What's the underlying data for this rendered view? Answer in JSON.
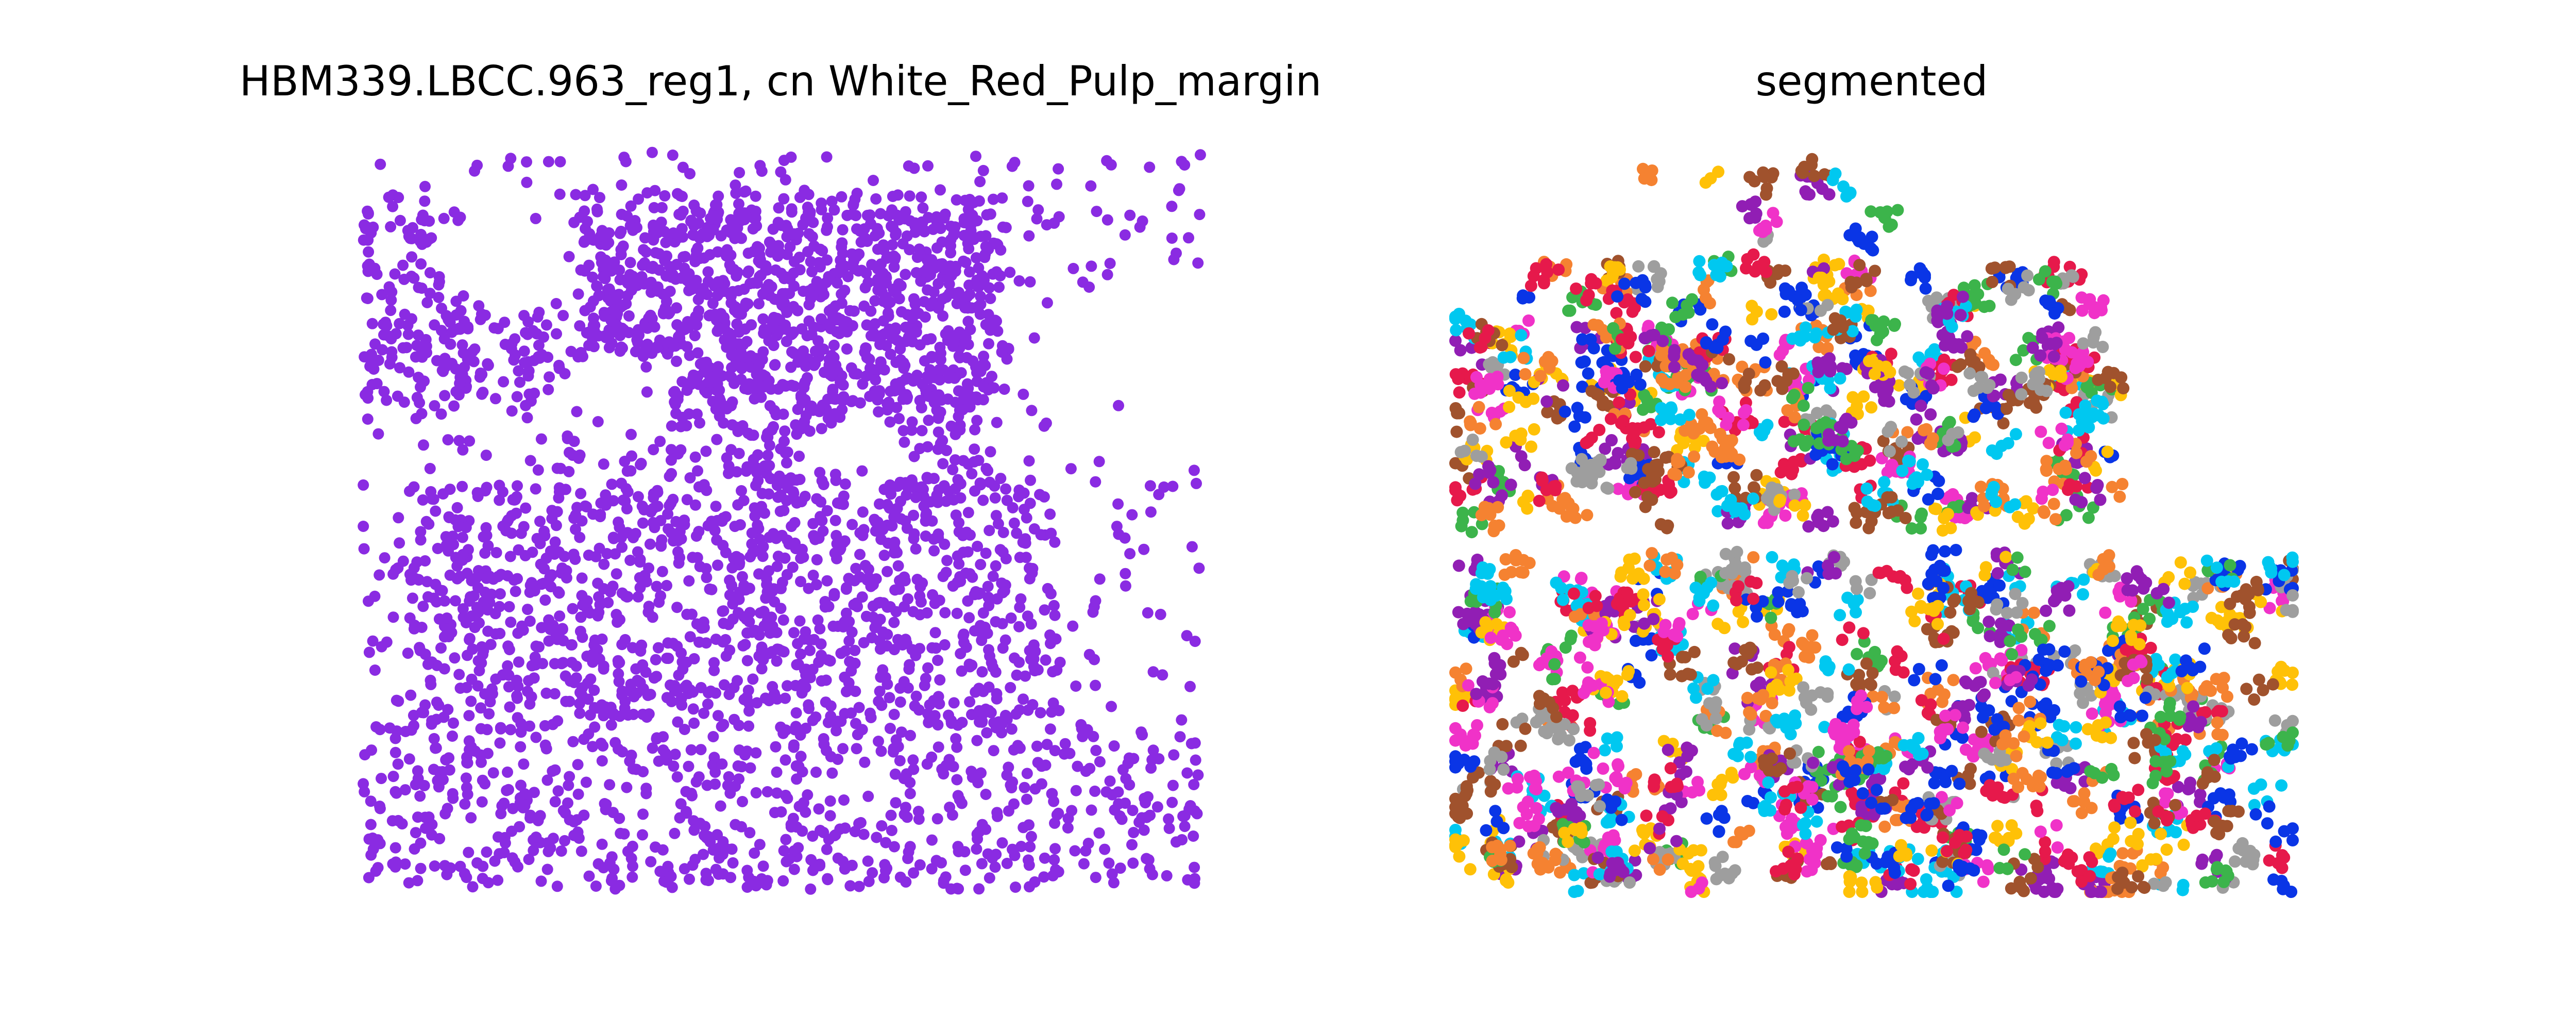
{
  "figure": {
    "left_title": "HBM339.LBCC.963_reg1, cn White_Red_Pulp_margin",
    "right_title": "segmented"
  },
  "chart_data": [
    {
      "type": "scatter",
      "title": "HBM339.LBCC.963_reg1, cn White_Red_Pulp_margin",
      "xlabel": "",
      "ylabel": "",
      "axes_visible": false,
      "grid": false,
      "point_color": "#8a2be2",
      "series": [
        {
          "color": "#8a2be2",
          "description": "dense cloud of cells; densest in two bands (upper band and lower band) with sparse scattered cells near top and right edges",
          "regions": [
            {
              "x": [
                0.0,
                1.0
              ],
              "y": [
                0.0,
                1.0
              ],
              "density": 0.25
            },
            {
              "x": [
                0.0,
                0.77
              ],
              "y": [
                0.08,
                0.35
              ],
              "density": 1.0
            },
            {
              "x": [
                0.25,
                0.75
              ],
              "y": [
                0.05,
                0.45
              ],
              "density": 1.0
            },
            {
              "x": [
                0.06,
                0.83
              ],
              "y": [
                0.45,
                0.78
              ],
              "density": 1.0
            },
            {
              "x": [
                0.0,
                1.0
              ],
              "y": [
                0.78,
                1.0
              ],
              "density": 0.6
            }
          ],
          "holes": [
            {
              "cx": 0.18,
              "cy": 0.14,
              "r": 0.08
            },
            {
              "cx": 0.3,
              "cy": 0.34,
              "r": 0.07
            },
            {
              "cx": 0.6,
              "cy": 0.4,
              "r": 0.05
            },
            {
              "cx": 0.92,
              "cy": 0.3,
              "r": 0.12
            }
          ]
        }
      ]
    },
    {
      "type": "scatter",
      "title": "segmented",
      "xlabel": "",
      "ylabel": "",
      "axes_visible": false,
      "grid": false,
      "palette": [
        "#e6194b",
        "#f58231",
        "#ffc107",
        "#3cb44b",
        "#00c8f0",
        "#0a35e6",
        "#911eb4",
        "#f032c8",
        "#a0522d",
        "#9e9e9e"
      ],
      "series": [
        {
          "description": "cells grouped into many small colored clusters (segments), concentrated in an upper band and a lower band",
          "regions": [
            {
              "x": [
                0.0,
                0.8
              ],
              "y": [
                0.15,
                0.5
              ],
              "density": 1.0
            },
            {
              "x": [
                0.0,
                1.0
              ],
              "y": [
                0.55,
                1.0
              ],
              "density": 1.0
            },
            {
              "x": [
                0.2,
                0.6
              ],
              "y": [
                0.0,
                0.15
              ],
              "density": 0.2
            }
          ]
        }
      ]
    }
  ]
}
